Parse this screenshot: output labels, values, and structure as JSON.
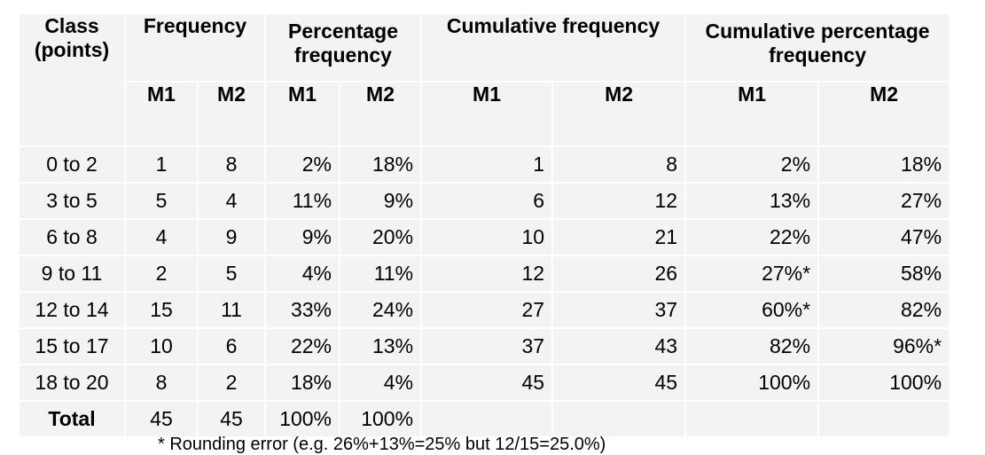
{
  "header": {
    "class": "Class\n(points)",
    "frequency": "Frequency",
    "percentage_frequency": "Percentage frequency",
    "cumulative_frequency": "Cumulative frequency",
    "cumulative_percentage_frequency": "Cumulative percentage frequency",
    "m1": "M1",
    "m2": "M2"
  },
  "rows": [
    {
      "class": "0 to 2",
      "f_m1": "1",
      "f_m2": "8",
      "p_m1": "2%",
      "p_m2": "18%",
      "c_m1": "1",
      "c_m2": "8",
      "cp_m1": "2%",
      "cp_m2": "18%"
    },
    {
      "class": "3 to 5",
      "f_m1": "5",
      "f_m2": "4",
      "p_m1": "11%",
      "p_m2": "9%",
      "c_m1": "6",
      "c_m2": "12",
      "cp_m1": "13%",
      "cp_m2": "27%"
    },
    {
      "class": "6 to 8",
      "f_m1": "4",
      "f_m2": "9",
      "p_m1": "9%",
      "p_m2": "20%",
      "c_m1": "10",
      "c_m2": "21",
      "cp_m1": "22%",
      "cp_m2": "47%"
    },
    {
      "class": "9 to 11",
      "f_m1": "2",
      "f_m2": "5",
      "p_m1": "4%",
      "p_m2": "11%",
      "c_m1": "12",
      "c_m2": "26",
      "cp_m1": "27%*",
      "cp_m2": "58%"
    },
    {
      "class": "12 to 14",
      "f_m1": "15",
      "f_m2": "11",
      "p_m1": "33%",
      "p_m2": "24%",
      "c_m1": "27",
      "c_m2": "37",
      "cp_m1": "60%*",
      "cp_m2": "82%"
    },
    {
      "class": "15 to 17",
      "f_m1": "10",
      "f_m2": "6",
      "p_m1": "22%",
      "p_m2": "13%",
      "c_m1": "37",
      "c_m2": "43",
      "cp_m1": "82%",
      "cp_m2": "96%*"
    },
    {
      "class": "18 to 20",
      "f_m1": "8",
      "f_m2": "2",
      "p_m1": "18%",
      "p_m2": "4%",
      "c_m1": "45",
      "c_m2": "45",
      "cp_m1": "100%",
      "cp_m2": "100%"
    }
  ],
  "total": {
    "label": "Total",
    "f_m1": "45",
    "f_m2": "45",
    "p_m1": "100%",
    "p_m2": "100%"
  },
  "footnote": "* Rounding error (e.g. 26%+13%=25% but 12/15=25.0%)"
}
